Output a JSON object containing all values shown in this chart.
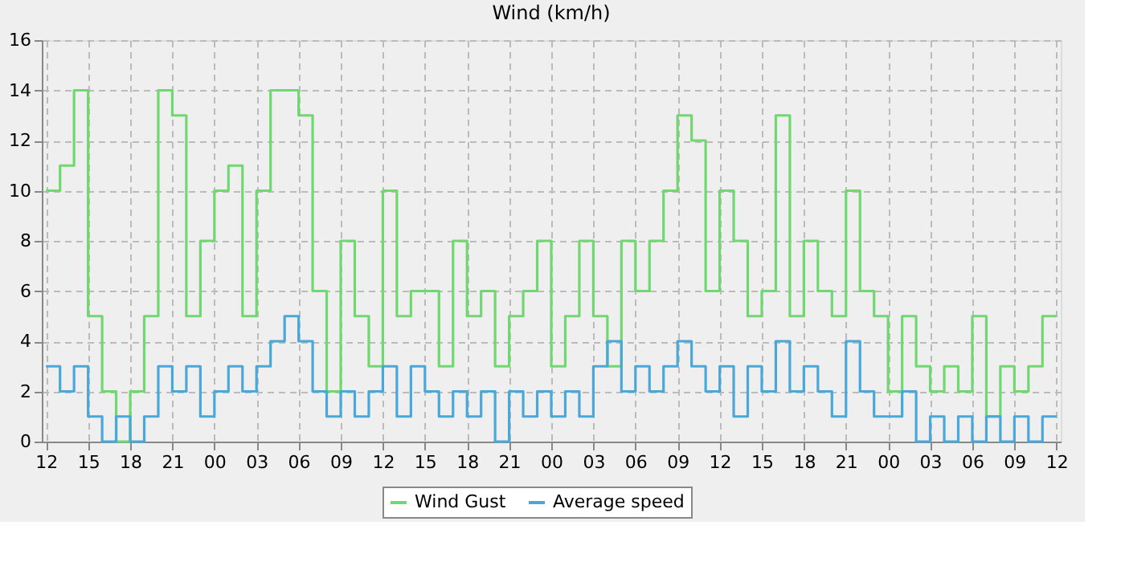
{
  "chart_data": {
    "type": "step",
    "title": "Wind (km/h)",
    "categories": [
      "12",
      null,
      null,
      "15",
      null,
      null,
      "18",
      null,
      null,
      "21",
      null,
      null,
      "00",
      null,
      null,
      "03",
      null,
      null,
      "06",
      null,
      null,
      "09",
      null,
      null,
      "12",
      null,
      null,
      "15",
      null,
      null,
      "18",
      null,
      null,
      "21",
      null,
      null,
      "00",
      null,
      null,
      "03",
      null,
      null,
      "06",
      null,
      null,
      "09",
      null,
      null,
      "12",
      null,
      null,
      "15",
      null,
      null,
      "18",
      null,
      null,
      "21",
      null,
      null,
      "00",
      null,
      null,
      "03",
      null,
      null,
      "06",
      null,
      null,
      "09",
      null,
      null,
      "12"
    ],
    "series": [
      {
        "name": "Wind Gust",
        "color": "#70d870",
        "values": [
          10,
          11,
          14,
          5,
          2,
          0,
          2,
          5,
          14,
          13,
          5,
          8,
          10,
          11,
          5,
          10,
          14,
          14,
          13,
          6,
          2,
          8,
          5,
          3,
          10,
          5,
          6,
          6,
          3,
          8,
          5,
          6,
          3,
          5,
          6,
          8,
          3,
          5,
          8,
          5,
          3,
          8,
          6,
          8,
          10,
          13,
          12,
          6,
          10,
          8,
          5,
          6,
          13,
          5,
          8,
          6,
          5,
          10,
          6,
          5,
          2,
          5,
          3,
          2,
          3,
          2,
          5,
          1,
          3,
          2,
          3,
          5,
          5
        ]
      },
      {
        "name": "Average speed",
        "color": "#4aa8d8",
        "values": [
          3,
          2,
          3,
          1,
          0,
          1,
          0,
          1,
          3,
          2,
          3,
          1,
          2,
          3,
          2,
          3,
          4,
          5,
          4,
          2,
          1,
          2,
          1,
          2,
          3,
          1,
          3,
          2,
          1,
          2,
          1,
          2,
          0,
          2,
          1,
          2,
          1,
          2,
          1,
          3,
          4,
          2,
          3,
          2,
          3,
          4,
          3,
          2,
          3,
          1,
          3,
          2,
          4,
          2,
          3,
          2,
          1,
          4,
          2,
          1,
          1,
          2,
          0,
          1,
          0,
          1,
          0,
          1,
          0,
          1,
          0,
          1,
          1
        ]
      }
    ],
    "ylim": [
      0,
      16
    ],
    "yticks": [
      0,
      2,
      4,
      6,
      8,
      10,
      12,
      14,
      16
    ],
    "grid": true,
    "legend": "bottom",
    "line_style": "solid"
  }
}
